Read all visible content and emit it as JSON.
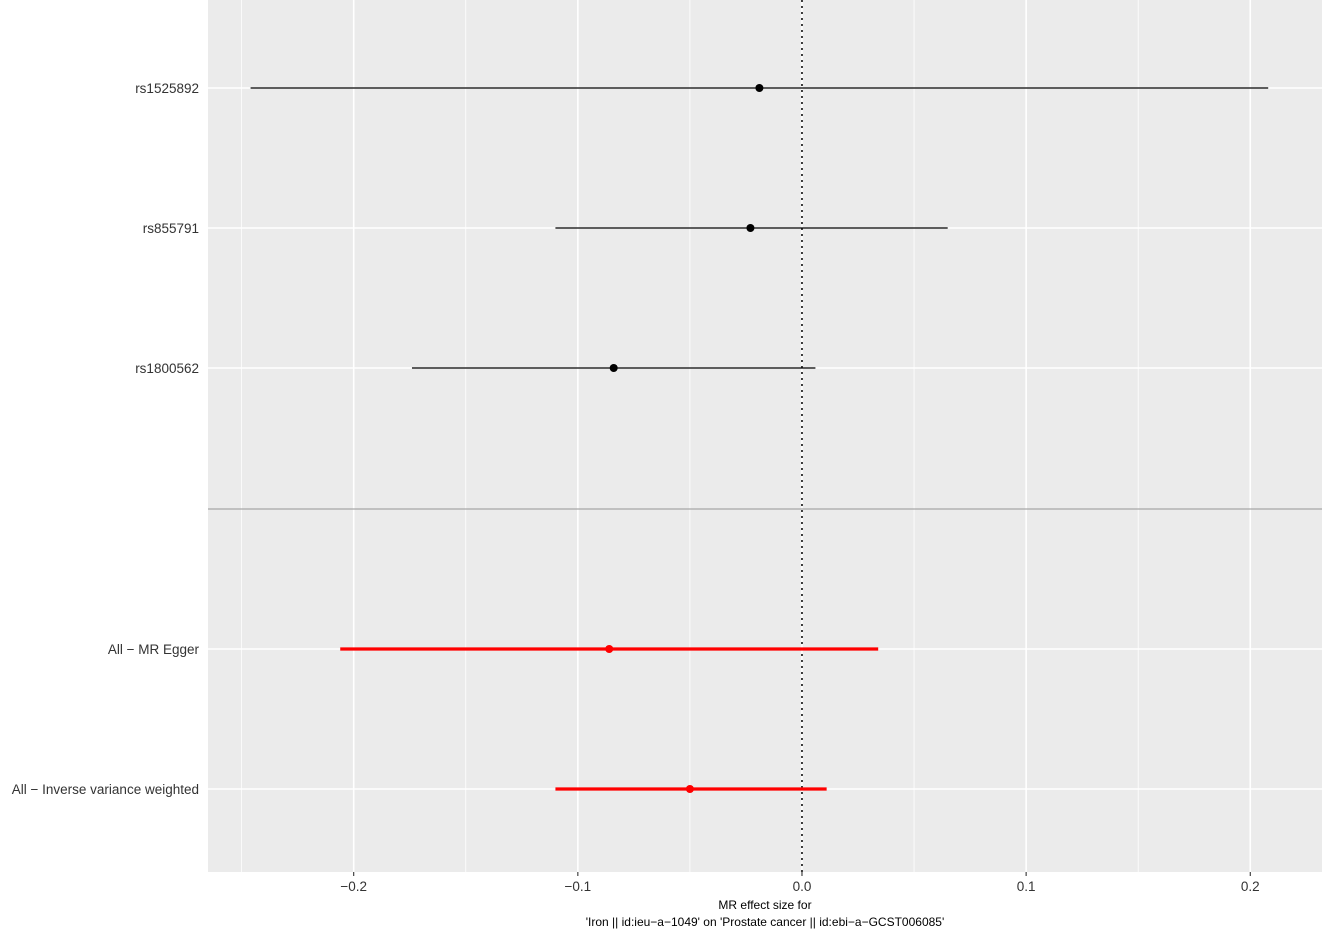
{
  "chart_data": {
    "type": "forest",
    "xlabel_lines": [
      "MR effect size for",
      "'Iron || id:ieu−a−1049' on 'Prostate cancer || id:ebi−a−GCST006085'"
    ],
    "ylabel": "",
    "xlim": [
      -0.265,
      0.232
    ],
    "x_ticks": [
      -0.2,
      -0.1,
      0.0,
      0.1,
      0.2
    ],
    "x_tick_labels": [
      "−0.2",
      "−0.1",
      "0.0",
      "0.1",
      "0.2"
    ],
    "reference_line": 0,
    "grid": true,
    "rows": [
      {
        "label": "rs1525892",
        "estimate": -0.019,
        "lower": -0.246,
        "upper": 0.208,
        "color": "#000000",
        "group": "snp"
      },
      {
        "label": "rs855791",
        "estimate": -0.023,
        "lower": -0.11,
        "upper": 0.065,
        "color": "#000000",
        "group": "snp"
      },
      {
        "label": "rs1800562",
        "estimate": -0.084,
        "lower": -0.174,
        "upper": 0.006,
        "color": "#000000",
        "group": "snp"
      },
      {
        "label": "All − MR Egger",
        "estimate": -0.086,
        "lower": -0.206,
        "upper": 0.034,
        "color": "#ff0000",
        "group": "summary"
      },
      {
        "label": "All − Inverse variance weighted",
        "estimate": -0.05,
        "lower": -0.11,
        "upper": 0.011,
        "color": "#ff0000",
        "group": "summary"
      }
    ]
  }
}
